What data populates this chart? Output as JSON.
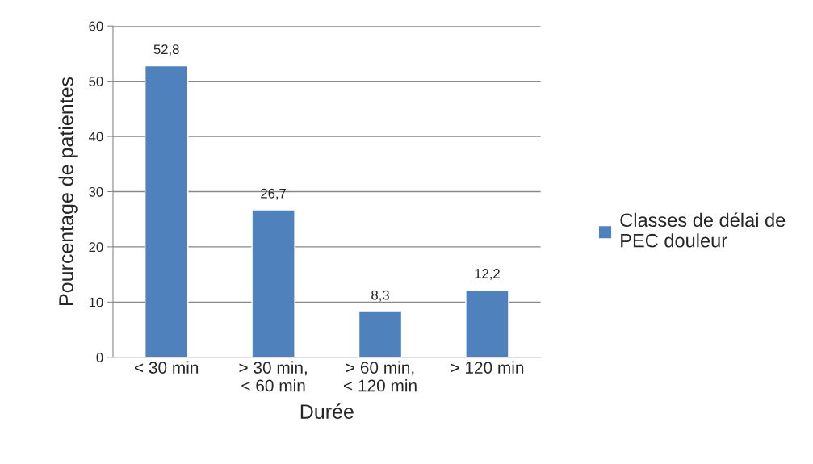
{
  "chart_data": {
    "type": "bar",
    "xlabel": "Durée",
    "ylabel": "Pourcentage de patientes",
    "categories": [
      "< 30 min",
      "> 30 min,\n< 60 min",
      "> 60 min,\n< 120 min",
      "> 120 min"
    ],
    "series": [
      {
        "name": "Classes de délai de\nPEC douleur",
        "color": "#4f81bd",
        "values": [
          52.8,
          26.7,
          8.3,
          12.2
        ],
        "value_labels": [
          "52,8",
          "26,7",
          "8,3",
          "12,2"
        ]
      }
    ],
    "ylim": [
      0,
      60
    ],
    "yticks": [
      0,
      10,
      20,
      30,
      40,
      50,
      60
    ],
    "grid": "y",
    "legend": "right"
  }
}
